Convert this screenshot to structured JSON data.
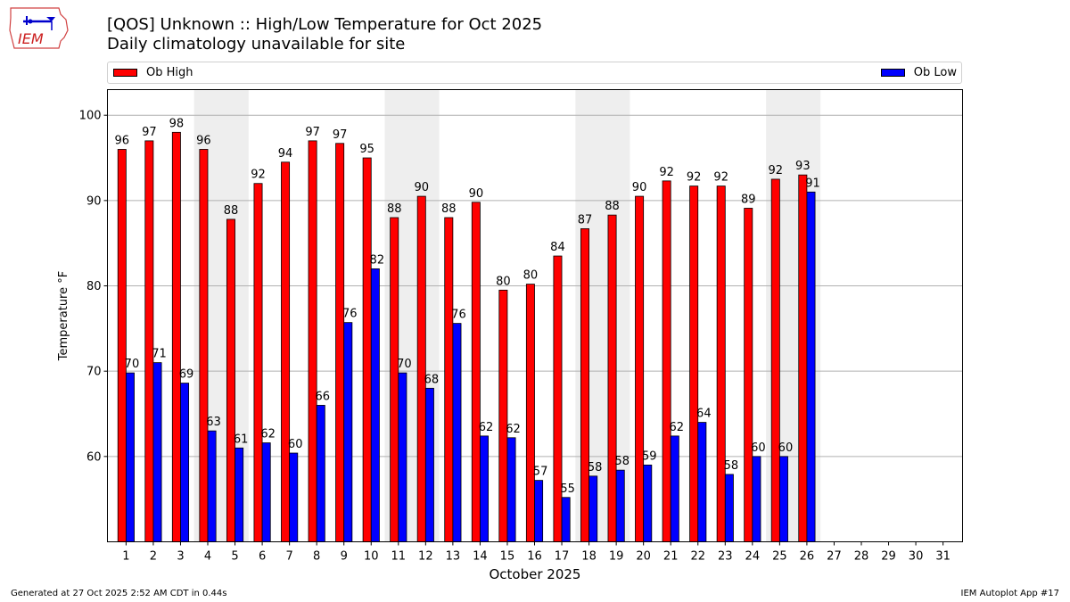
{
  "header": {
    "title_line1": "[QOS] Unknown :: High/Low Temperature for Oct 2025",
    "title_line2": "Daily climatology unavailable for site",
    "logo_text": "IEM"
  },
  "footer": {
    "generated": "Generated at 27 Oct 2025 2:52 AM CDT in 0.44s",
    "app": "IEM Autoplot App #17"
  },
  "colors": {
    "high": "#ff0000",
    "low": "#0000ff",
    "weekend_band": "#eeeeee",
    "grid": "#b0b0b0"
  },
  "chart_data": {
    "type": "bar",
    "title": "[QOS] Unknown :: High/Low Temperature for Oct 2025",
    "subtitle": "Daily climatology unavailable for site",
    "xlabel": "October 2025",
    "ylabel": "Temperature °F",
    "ylim": [
      50,
      103
    ],
    "yticks": [
      60,
      70,
      80,
      90,
      100
    ],
    "grid": true,
    "legend_placement": "top",
    "categories": [
      "1",
      "2",
      "3",
      "4",
      "5",
      "6",
      "7",
      "8",
      "9",
      "10",
      "11",
      "12",
      "13",
      "14",
      "15",
      "16",
      "17",
      "18",
      "19",
      "20",
      "21",
      "22",
      "23",
      "24",
      "25",
      "26",
      "27",
      "28",
      "29",
      "30",
      "31"
    ],
    "weekend_days": [
      4,
      5,
      11,
      12,
      18,
      19,
      25,
      26
    ],
    "series": [
      {
        "name": "Ob High",
        "values": [
          96,
          97,
          98,
          96,
          88,
          92,
          94,
          97,
          97,
          95,
          88,
          90,
          88,
          90,
          80,
          80,
          84,
          87,
          88,
          90,
          92,
          92,
          92,
          89,
          92,
          93,
          null,
          null,
          null,
          null,
          null
        ],
        "bar_values": [
          96,
          97,
          98,
          96,
          87.8,
          92,
          94.5,
          97,
          96.7,
          95,
          88,
          90.5,
          88,
          89.8,
          79.5,
          80.2,
          83.5,
          86.7,
          88.3,
          90.5,
          92.3,
          91.7,
          91.7,
          89.1,
          92.5,
          93
        ]
      },
      {
        "name": "Ob Low",
        "values": [
          70,
          71,
          69,
          63,
          61,
          62,
          60,
          66,
          76,
          82,
          70,
          68,
          76,
          62,
          62,
          57,
          55,
          58,
          58,
          59,
          62,
          64,
          58,
          60,
          60,
          91,
          null,
          null,
          null,
          null,
          null
        ],
        "bar_values": [
          69.8,
          71,
          68.6,
          63,
          61,
          61.6,
          60.4,
          66,
          75.7,
          82,
          69.8,
          68,
          75.6,
          62.4,
          62.2,
          57.2,
          55.2,
          57.7,
          58.4,
          59,
          62.4,
          64,
          57.9,
          60,
          60,
          91
        ]
      }
    ]
  }
}
